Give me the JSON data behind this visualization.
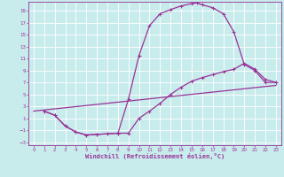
{
  "xlabel": "Windchill (Refroidissement éolien,°C)",
  "background_color": "#c8ecec",
  "grid_color": "#ffffff",
  "line_color": "#993399",
  "xlim": [
    -0.5,
    23.5
  ],
  "ylim": [
    -3.5,
    20.5
  ],
  "xticks": [
    0,
    1,
    2,
    3,
    4,
    5,
    6,
    7,
    8,
    9,
    10,
    11,
    12,
    13,
    14,
    15,
    16,
    17,
    18,
    19,
    20,
    21,
    22,
    23
  ],
  "yticks": [
    -3,
    -1,
    1,
    3,
    5,
    7,
    9,
    11,
    13,
    15,
    17,
    19
  ],
  "curve1_x": [
    1,
    2,
    3,
    4,
    5,
    6,
    7,
    8,
    9,
    10,
    11,
    12,
    13,
    14,
    15,
    15.5,
    16,
    17,
    18,
    19,
    20,
    21,
    22,
    23
  ],
  "curve1_y": [
    2.2,
    1.5,
    -0.3,
    -1.3,
    -1.8,
    -1.7,
    -1.6,
    -1.5,
    4.2,
    11.5,
    16.5,
    18.5,
    19.2,
    19.8,
    20.2,
    20.3,
    20.0,
    19.5,
    18.5,
    15.5,
    10.0,
    9.0,
    7.0,
    7.0
  ],
  "curve2_x": [
    1,
    2,
    3,
    4,
    5,
    6,
    7,
    8,
    9,
    10,
    11,
    12,
    13,
    14,
    15,
    16,
    17,
    18,
    19,
    20,
    21,
    22,
    23
  ],
  "curve2_y": [
    2.2,
    1.5,
    -0.3,
    -1.3,
    -1.8,
    -1.7,
    -1.6,
    -1.5,
    -1.5,
    1.0,
    2.2,
    3.5,
    5.0,
    6.2,
    7.2,
    7.8,
    8.3,
    8.8,
    9.2,
    10.2,
    9.2,
    7.5,
    7.0
  ],
  "curve3_x": [
    0,
    23
  ],
  "curve3_y": [
    2.2,
    6.5
  ]
}
